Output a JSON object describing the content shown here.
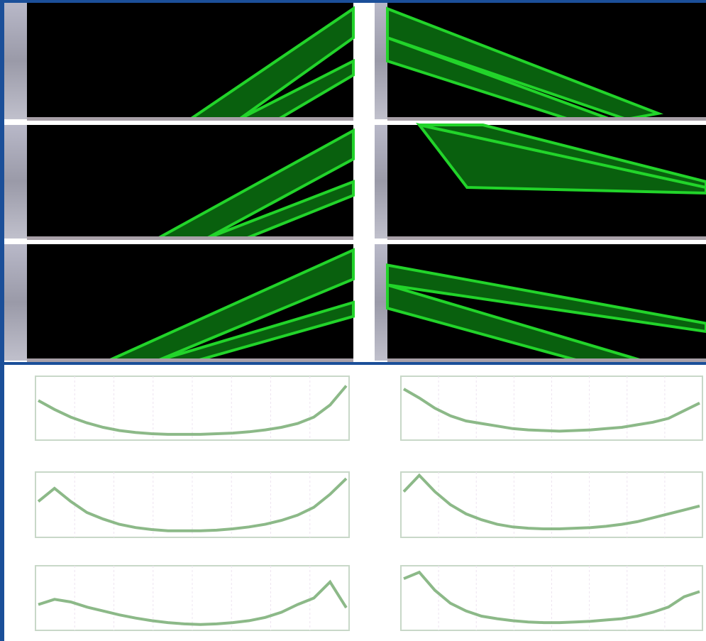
{
  "chart_data": [
    {
      "type": "line",
      "color": "#6fa86a",
      "ylim": [
        0,
        1
      ],
      "values": [
        0.62,
        0.48,
        0.36,
        0.27,
        0.2,
        0.15,
        0.12,
        0.1,
        0.09,
        0.09,
        0.09,
        0.1,
        0.11,
        0.13,
        0.16,
        0.2,
        0.26,
        0.36,
        0.55,
        0.85
      ]
    },
    {
      "type": "line",
      "color": "#6fa86a",
      "ylim": [
        0,
        1
      ],
      "values": [
        0.8,
        0.66,
        0.5,
        0.38,
        0.3,
        0.26,
        0.22,
        0.18,
        0.16,
        0.15,
        0.14,
        0.15,
        0.16,
        0.18,
        0.2,
        0.24,
        0.28,
        0.34,
        0.46,
        0.58
      ]
    },
    {
      "type": "line",
      "color": "#6fa86a",
      "ylim": [
        0,
        1
      ],
      "values": [
        0.55,
        0.75,
        0.55,
        0.38,
        0.28,
        0.2,
        0.15,
        0.12,
        0.1,
        0.1,
        0.1,
        0.11,
        0.13,
        0.16,
        0.2,
        0.26,
        0.34,
        0.46,
        0.66,
        0.9
      ]
    },
    {
      "type": "line",
      "color": "#6fa86a",
      "ylim": [
        0,
        1
      ],
      "values": [
        0.7,
        0.95,
        0.7,
        0.5,
        0.36,
        0.27,
        0.2,
        0.16,
        0.14,
        0.13,
        0.13,
        0.14,
        0.15,
        0.17,
        0.2,
        0.24,
        0.3,
        0.36,
        0.42,
        0.48
      ]
    },
    {
      "type": "line",
      "color": "#6fa86a",
      "ylim": [
        0,
        1
      ],
      "values": [
        0.4,
        0.48,
        0.44,
        0.36,
        0.3,
        0.24,
        0.19,
        0.15,
        0.12,
        0.1,
        0.09,
        0.1,
        0.12,
        0.15,
        0.2,
        0.28,
        0.4,
        0.5,
        0.75,
        0.35
      ]
    },
    {
      "type": "line",
      "color": "#6fa86a",
      "ylim": [
        0,
        1
      ],
      "values": [
        0.8,
        0.9,
        0.62,
        0.42,
        0.3,
        0.22,
        0.18,
        0.15,
        0.13,
        0.12,
        0.12,
        0.13,
        0.14,
        0.16,
        0.18,
        0.22,
        0.28,
        0.36,
        0.52,
        0.6
      ]
    }
  ]
}
